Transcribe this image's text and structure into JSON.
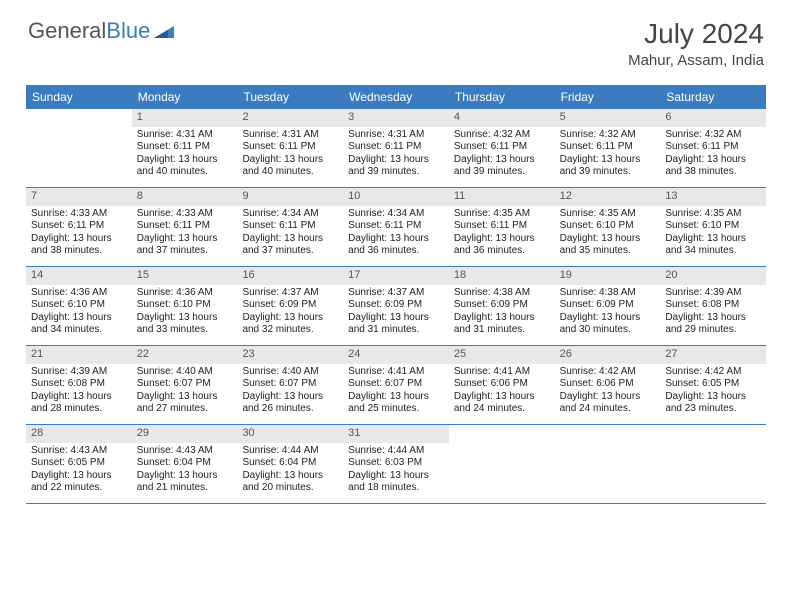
{
  "logo": {
    "text1": "General",
    "text2": "Blue"
  },
  "title": "July 2024",
  "location": "Mahur, Assam, India",
  "colors": {
    "header_bg": "#3b7bbf",
    "header_text": "#ffffff",
    "daynum_bg": "#e8e8e8",
    "text": "#222222",
    "border": "#3b7bbf"
  },
  "day_names": [
    "Sunday",
    "Monday",
    "Tuesday",
    "Wednesday",
    "Thursday",
    "Friday",
    "Saturday"
  ],
  "weeks": [
    [
      null,
      {
        "n": "1",
        "sr": "Sunrise: 4:31 AM",
        "ss": "Sunset: 6:11 PM",
        "d1": "Daylight: 13 hours",
        "d2": "and 40 minutes."
      },
      {
        "n": "2",
        "sr": "Sunrise: 4:31 AM",
        "ss": "Sunset: 6:11 PM",
        "d1": "Daylight: 13 hours",
        "d2": "and 40 minutes."
      },
      {
        "n": "3",
        "sr": "Sunrise: 4:31 AM",
        "ss": "Sunset: 6:11 PM",
        "d1": "Daylight: 13 hours",
        "d2": "and 39 minutes."
      },
      {
        "n": "4",
        "sr": "Sunrise: 4:32 AM",
        "ss": "Sunset: 6:11 PM",
        "d1": "Daylight: 13 hours",
        "d2": "and 39 minutes."
      },
      {
        "n": "5",
        "sr": "Sunrise: 4:32 AM",
        "ss": "Sunset: 6:11 PM",
        "d1": "Daylight: 13 hours",
        "d2": "and 39 minutes."
      },
      {
        "n": "6",
        "sr": "Sunrise: 4:32 AM",
        "ss": "Sunset: 6:11 PM",
        "d1": "Daylight: 13 hours",
        "d2": "and 38 minutes."
      }
    ],
    [
      {
        "n": "7",
        "sr": "Sunrise: 4:33 AM",
        "ss": "Sunset: 6:11 PM",
        "d1": "Daylight: 13 hours",
        "d2": "and 38 minutes."
      },
      {
        "n": "8",
        "sr": "Sunrise: 4:33 AM",
        "ss": "Sunset: 6:11 PM",
        "d1": "Daylight: 13 hours",
        "d2": "and 37 minutes."
      },
      {
        "n": "9",
        "sr": "Sunrise: 4:34 AM",
        "ss": "Sunset: 6:11 PM",
        "d1": "Daylight: 13 hours",
        "d2": "and 37 minutes."
      },
      {
        "n": "10",
        "sr": "Sunrise: 4:34 AM",
        "ss": "Sunset: 6:11 PM",
        "d1": "Daylight: 13 hours",
        "d2": "and 36 minutes."
      },
      {
        "n": "11",
        "sr": "Sunrise: 4:35 AM",
        "ss": "Sunset: 6:11 PM",
        "d1": "Daylight: 13 hours",
        "d2": "and 36 minutes."
      },
      {
        "n": "12",
        "sr": "Sunrise: 4:35 AM",
        "ss": "Sunset: 6:10 PM",
        "d1": "Daylight: 13 hours",
        "d2": "and 35 minutes."
      },
      {
        "n": "13",
        "sr": "Sunrise: 4:35 AM",
        "ss": "Sunset: 6:10 PM",
        "d1": "Daylight: 13 hours",
        "d2": "and 34 minutes."
      }
    ],
    [
      {
        "n": "14",
        "sr": "Sunrise: 4:36 AM",
        "ss": "Sunset: 6:10 PM",
        "d1": "Daylight: 13 hours",
        "d2": "and 34 minutes."
      },
      {
        "n": "15",
        "sr": "Sunrise: 4:36 AM",
        "ss": "Sunset: 6:10 PM",
        "d1": "Daylight: 13 hours",
        "d2": "and 33 minutes."
      },
      {
        "n": "16",
        "sr": "Sunrise: 4:37 AM",
        "ss": "Sunset: 6:09 PM",
        "d1": "Daylight: 13 hours",
        "d2": "and 32 minutes."
      },
      {
        "n": "17",
        "sr": "Sunrise: 4:37 AM",
        "ss": "Sunset: 6:09 PM",
        "d1": "Daylight: 13 hours",
        "d2": "and 31 minutes."
      },
      {
        "n": "18",
        "sr": "Sunrise: 4:38 AM",
        "ss": "Sunset: 6:09 PM",
        "d1": "Daylight: 13 hours",
        "d2": "and 31 minutes."
      },
      {
        "n": "19",
        "sr": "Sunrise: 4:38 AM",
        "ss": "Sunset: 6:09 PM",
        "d1": "Daylight: 13 hours",
        "d2": "and 30 minutes."
      },
      {
        "n": "20",
        "sr": "Sunrise: 4:39 AM",
        "ss": "Sunset: 6:08 PM",
        "d1": "Daylight: 13 hours",
        "d2": "and 29 minutes."
      }
    ],
    [
      {
        "n": "21",
        "sr": "Sunrise: 4:39 AM",
        "ss": "Sunset: 6:08 PM",
        "d1": "Daylight: 13 hours",
        "d2": "and 28 minutes."
      },
      {
        "n": "22",
        "sr": "Sunrise: 4:40 AM",
        "ss": "Sunset: 6:07 PM",
        "d1": "Daylight: 13 hours",
        "d2": "and 27 minutes."
      },
      {
        "n": "23",
        "sr": "Sunrise: 4:40 AM",
        "ss": "Sunset: 6:07 PM",
        "d1": "Daylight: 13 hours",
        "d2": "and 26 minutes."
      },
      {
        "n": "24",
        "sr": "Sunrise: 4:41 AM",
        "ss": "Sunset: 6:07 PM",
        "d1": "Daylight: 13 hours",
        "d2": "and 25 minutes."
      },
      {
        "n": "25",
        "sr": "Sunrise: 4:41 AM",
        "ss": "Sunset: 6:06 PM",
        "d1": "Daylight: 13 hours",
        "d2": "and 24 minutes."
      },
      {
        "n": "26",
        "sr": "Sunrise: 4:42 AM",
        "ss": "Sunset: 6:06 PM",
        "d1": "Daylight: 13 hours",
        "d2": "and 24 minutes."
      },
      {
        "n": "27",
        "sr": "Sunrise: 4:42 AM",
        "ss": "Sunset: 6:05 PM",
        "d1": "Daylight: 13 hours",
        "d2": "and 23 minutes."
      }
    ],
    [
      {
        "n": "28",
        "sr": "Sunrise: 4:43 AM",
        "ss": "Sunset: 6:05 PM",
        "d1": "Daylight: 13 hours",
        "d2": "and 22 minutes."
      },
      {
        "n": "29",
        "sr": "Sunrise: 4:43 AM",
        "ss": "Sunset: 6:04 PM",
        "d1": "Daylight: 13 hours",
        "d2": "and 21 minutes."
      },
      {
        "n": "30",
        "sr": "Sunrise: 4:44 AM",
        "ss": "Sunset: 6:04 PM",
        "d1": "Daylight: 13 hours",
        "d2": "and 20 minutes."
      },
      {
        "n": "31",
        "sr": "Sunrise: 4:44 AM",
        "ss": "Sunset: 6:03 PM",
        "d1": "Daylight: 13 hours",
        "d2": "and 18 minutes."
      },
      null,
      null,
      null
    ]
  ]
}
